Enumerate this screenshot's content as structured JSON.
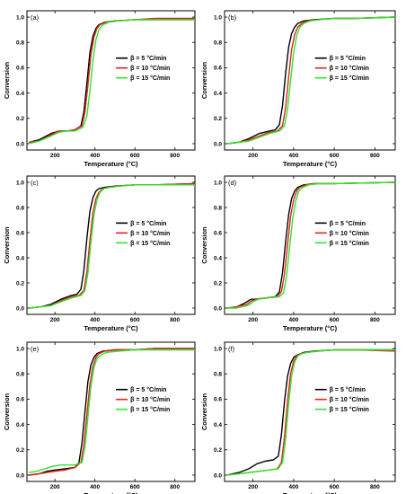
{
  "chart_data": [
    {
      "type": "line",
      "panel_label": "(a)",
      "xlabel": "Temperature (°C)",
      "ylabel": "Conversion",
      "xlim": [
        60,
        900
      ],
      "ylim": [
        -0.05,
        1.05
      ],
      "xticks": [
        "200",
        "400",
        "600",
        "800"
      ],
      "yticks": [
        "0.0",
        "0.2",
        "0.4",
        "0.6",
        "0.8",
        "1.0"
      ],
      "legend_position": "right",
      "series": [
        {
          "name": "β = 5 °C/min",
          "color": "#000000",
          "x": [
            70,
            120,
            180,
            220,
            260,
            300,
            330,
            345,
            360,
            375,
            390,
            405,
            420,
            450,
            500,
            600,
            700,
            900
          ],
          "y": [
            0.01,
            0.03,
            0.08,
            0.1,
            0.1,
            0.11,
            0.14,
            0.25,
            0.48,
            0.72,
            0.85,
            0.91,
            0.94,
            0.96,
            0.97,
            0.98,
            0.98,
            0.98
          ]
        },
        {
          "name": "β = 10 °C/min",
          "color": "#e0261b",
          "x": [
            70,
            120,
            180,
            220,
            260,
            300,
            335,
            350,
            365,
            380,
            395,
            410,
            425,
            455,
            500,
            600,
            700,
            900
          ],
          "y": [
            0.01,
            0.02,
            0.07,
            0.1,
            0.1,
            0.11,
            0.14,
            0.25,
            0.46,
            0.7,
            0.84,
            0.91,
            0.94,
            0.96,
            0.97,
            0.98,
            0.99,
            0.99
          ]
        },
        {
          "name": "β = 15 °C/min",
          "color": "#2ee62e",
          "x": [
            70,
            120,
            180,
            220,
            260,
            300,
            340,
            360,
            375,
            390,
            405,
            420,
            440,
            470,
            520,
            600,
            700,
            900
          ],
          "y": [
            0.0,
            0.02,
            0.06,
            0.09,
            0.1,
            0.1,
            0.13,
            0.22,
            0.42,
            0.66,
            0.82,
            0.9,
            0.94,
            0.96,
            0.97,
            0.98,
            0.98,
            0.98
          ]
        }
      ]
    },
    {
      "type": "line",
      "panel_label": "(b)",
      "xlabel": "Temperature (°C)",
      "ylabel": "Conversion",
      "xlim": [
        60,
        900
      ],
      "ylim": [
        -0.05,
        1.05
      ],
      "xticks": [
        "200",
        "400",
        "600",
        "800"
      ],
      "yticks": [
        "0.0",
        "0.2",
        "0.4",
        "0.6",
        "0.8",
        "1.0"
      ],
      "legend_position": "right",
      "series": [
        {
          "name": "β = 5 °C/min",
          "color": "#000000",
          "x": [
            70,
            130,
            180,
            230,
            280,
            310,
            330,
            345,
            360,
            375,
            390,
            405,
            420,
            450,
            500,
            600,
            700,
            900
          ],
          "y": [
            0.0,
            0.01,
            0.04,
            0.08,
            0.1,
            0.11,
            0.15,
            0.3,
            0.55,
            0.76,
            0.87,
            0.92,
            0.95,
            0.97,
            0.98,
            0.99,
            0.99,
            1.0
          ]
        },
        {
          "name": "β = 10 °C/min",
          "color": "#e0261b",
          "x": [
            70,
            130,
            180,
            230,
            280,
            320,
            345,
            360,
            375,
            390,
            405,
            420,
            440,
            470,
            520,
            600,
            700,
            900
          ],
          "y": [
            0.0,
            0.01,
            0.03,
            0.06,
            0.09,
            0.1,
            0.14,
            0.28,
            0.52,
            0.74,
            0.86,
            0.92,
            0.95,
            0.97,
            0.98,
            0.99,
            0.99,
            1.0
          ]
        },
        {
          "name": "β = 15 °C/min",
          "color": "#2ee62e",
          "x": [
            70,
            130,
            180,
            230,
            280,
            330,
            355,
            370,
            385,
            400,
            415,
            430,
            450,
            480,
            530,
            600,
            700,
            900
          ],
          "y": [
            0.0,
            0.01,
            0.02,
            0.05,
            0.08,
            0.1,
            0.14,
            0.27,
            0.5,
            0.72,
            0.85,
            0.92,
            0.95,
            0.97,
            0.98,
            0.99,
            0.99,
            1.0
          ]
        }
      ]
    },
    {
      "type": "line",
      "panel_label": "(c)",
      "xlabel": "Temperature (°C)",
      "ylabel": "Conversion",
      "xlim": [
        60,
        900
      ],
      "ylim": [
        -0.05,
        1.05
      ],
      "xticks": [
        "200",
        "400",
        "600",
        "800"
      ],
      "yticks": [
        "0.0",
        "0.2",
        "0.4",
        "0.6",
        "0.8",
        "1.0"
      ],
      "legend_position": "right",
      "series": [
        {
          "name": "β = 5 °C/min",
          "color": "#000000",
          "x": [
            70,
            130,
            180,
            230,
            280,
            310,
            330,
            345,
            360,
            375,
            390,
            405,
            420,
            450,
            500,
            600,
            700,
            900
          ],
          "y": [
            0.0,
            0.01,
            0.03,
            0.07,
            0.1,
            0.11,
            0.15,
            0.3,
            0.56,
            0.77,
            0.88,
            0.93,
            0.95,
            0.96,
            0.97,
            0.98,
            0.98,
            0.99
          ]
        },
        {
          "name": "β = 10 °C/min",
          "color": "#e0261b",
          "x": [
            70,
            130,
            180,
            230,
            280,
            320,
            345,
            360,
            375,
            390,
            405,
            420,
            440,
            470,
            520,
            600,
            700,
            900
          ],
          "y": [
            0.0,
            0.01,
            0.02,
            0.06,
            0.09,
            0.1,
            0.14,
            0.29,
            0.54,
            0.76,
            0.87,
            0.92,
            0.95,
            0.96,
            0.97,
            0.98,
            0.98,
            0.99
          ]
        },
        {
          "name": "β = 15 °C/min",
          "color": "#2ee62e",
          "x": [
            70,
            130,
            180,
            230,
            280,
            330,
            350,
            365,
            380,
            395,
            410,
            425,
            445,
            475,
            525,
            600,
            700,
            900
          ],
          "y": [
            0.0,
            0.01,
            0.02,
            0.05,
            0.08,
            0.1,
            0.14,
            0.28,
            0.52,
            0.74,
            0.86,
            0.92,
            0.95,
            0.96,
            0.97,
            0.98,
            0.98,
            0.98
          ]
        }
      ]
    },
    {
      "type": "line",
      "panel_label": "(d)",
      "xlabel": "Temperature (°C)",
      "ylabel": "Conversion",
      "xlim": [
        60,
        900
      ],
      "ylim": [
        -0.05,
        1.05
      ],
      "xticks": [
        "200",
        "400",
        "600",
        "800"
      ],
      "yticks": [
        "0.0",
        "0.2",
        "0.4",
        "0.6",
        "0.8",
        "1.0"
      ],
      "legend_position": "right",
      "series": [
        {
          "name": "β = 5 °C/min",
          "color": "#000000",
          "x": [
            70,
            120,
            160,
            190,
            210,
            260,
            310,
            330,
            345,
            360,
            375,
            390,
            405,
            420,
            450,
            500,
            600,
            900
          ],
          "y": [
            0.0,
            0.01,
            0.04,
            0.07,
            0.07,
            0.08,
            0.09,
            0.13,
            0.28,
            0.52,
            0.74,
            0.87,
            0.93,
            0.96,
            0.98,
            0.99,
            0.99,
            1.0
          ]
        },
        {
          "name": "β = 10 °C/min",
          "color": "#e0261b",
          "x": [
            70,
            120,
            170,
            195,
            220,
            260,
            320,
            340,
            355,
            370,
            385,
            400,
            415,
            430,
            460,
            510,
            600,
            900
          ],
          "y": [
            0.0,
            0.01,
            0.03,
            0.06,
            0.07,
            0.08,
            0.09,
            0.13,
            0.27,
            0.5,
            0.73,
            0.86,
            0.93,
            0.96,
            0.98,
            0.99,
            0.99,
            1.0
          ]
        },
        {
          "name": "β = 15 °C/min",
          "color": "#2ee62e",
          "x": [
            70,
            120,
            175,
            200,
            225,
            270,
            330,
            350,
            365,
            380,
            395,
            410,
            425,
            445,
            475,
            525,
            600,
            900
          ],
          "y": [
            0.0,
            0.0,
            0.02,
            0.05,
            0.07,
            0.08,
            0.09,
            0.12,
            0.25,
            0.48,
            0.71,
            0.85,
            0.93,
            0.96,
            0.98,
            0.99,
            0.99,
            1.0
          ]
        }
      ]
    },
    {
      "type": "line",
      "panel_label": "(e)",
      "xlabel": "Temperature (°C)",
      "ylabel": "Conversion",
      "xlim": [
        60,
        900
      ],
      "ylim": [
        -0.05,
        1.05
      ],
      "xticks": [
        "200",
        "400",
        "600",
        "800"
      ],
      "yticks": [
        "0.0",
        "0.2",
        "0.4",
        "0.6",
        "0.8",
        "1.0"
      ],
      "legend_position": "right",
      "series": [
        {
          "name": "β = 5 °C/min",
          "color": "#000000",
          "x": [
            70,
            120,
            160,
            200,
            250,
            300,
            320,
            335,
            350,
            365,
            380,
            395,
            410,
            440,
            500,
            600,
            700,
            900
          ],
          "y": [
            0.0,
            0.01,
            0.03,
            0.04,
            0.05,
            0.06,
            0.1,
            0.25,
            0.5,
            0.74,
            0.87,
            0.93,
            0.96,
            0.98,
            0.99,
            0.99,
            1.0,
            1.0
          ]
        },
        {
          "name": "β = 10 °C/min",
          "color": "#e0261b",
          "x": [
            70,
            120,
            160,
            200,
            250,
            300,
            330,
            345,
            360,
            375,
            390,
            405,
            420,
            450,
            510,
            600,
            700,
            900
          ],
          "y": [
            0.0,
            0.01,
            0.02,
            0.03,
            0.04,
            0.06,
            0.1,
            0.24,
            0.48,
            0.72,
            0.86,
            0.93,
            0.96,
            0.98,
            0.99,
            0.99,
            1.0,
            1.0
          ]
        },
        {
          "name": "β = 15 °C/min",
          "color": "#2ee62e",
          "x": [
            70,
            110,
            150,
            190,
            230,
            300,
            335,
            350,
            365,
            380,
            395,
            410,
            430,
            460,
            520,
            600,
            700,
            900
          ],
          "y": [
            0.02,
            0.03,
            0.05,
            0.07,
            0.08,
            0.08,
            0.1,
            0.22,
            0.46,
            0.7,
            0.85,
            0.92,
            0.95,
            0.97,
            0.98,
            0.99,
            0.99,
            0.99
          ]
        }
      ]
    },
    {
      "type": "line",
      "panel_label": "(f)",
      "xlabel": "Temperature (°C)",
      "ylabel": "Conversion",
      "xlim": [
        60,
        900
      ],
      "ylim": [
        -0.05,
        1.05
      ],
      "xticks": [
        "200",
        "400",
        "600",
        "800"
      ],
      "yticks": [
        "0.0",
        "0.2",
        "0.4",
        "0.6",
        "0.8",
        "1.0"
      ],
      "legend_position": "right",
      "series": [
        {
          "name": "β = 5 °C/min",
          "color": "#000000",
          "x": [
            70,
            130,
            180,
            220,
            260,
            300,
            325,
            340,
            355,
            370,
            385,
            400,
            420,
            450,
            500,
            600,
            700,
            900
          ],
          "y": [
            0.0,
            0.02,
            0.05,
            0.09,
            0.11,
            0.12,
            0.15,
            0.32,
            0.58,
            0.78,
            0.88,
            0.93,
            0.95,
            0.97,
            0.98,
            0.99,
            0.99,
            0.99
          ]
        },
        {
          "name": "β = 10 °C/min",
          "color": "#e0261b",
          "x": [
            70,
            130,
            180,
            230,
            280,
            320,
            340,
            355,
            370,
            385,
            400,
            415,
            435,
            465,
            520,
            600,
            700,
            900
          ],
          "y": [
            0.0,
            0.01,
            0.02,
            0.03,
            0.04,
            0.05,
            0.1,
            0.3,
            0.58,
            0.8,
            0.9,
            0.94,
            0.96,
            0.97,
            0.98,
            0.99,
            0.99,
            0.98
          ]
        },
        {
          "name": "β = 15 °C/min",
          "color": "#2ee62e",
          "x": [
            70,
            130,
            180,
            230,
            280,
            325,
            345,
            360,
            375,
            390,
            405,
            420,
            440,
            470,
            525,
            600,
            700,
            900
          ],
          "y": [
            0.0,
            0.01,
            0.02,
            0.03,
            0.04,
            0.05,
            0.1,
            0.28,
            0.56,
            0.78,
            0.89,
            0.94,
            0.96,
            0.97,
            0.98,
            0.99,
            0.99,
            0.99
          ]
        }
      ]
    }
  ]
}
